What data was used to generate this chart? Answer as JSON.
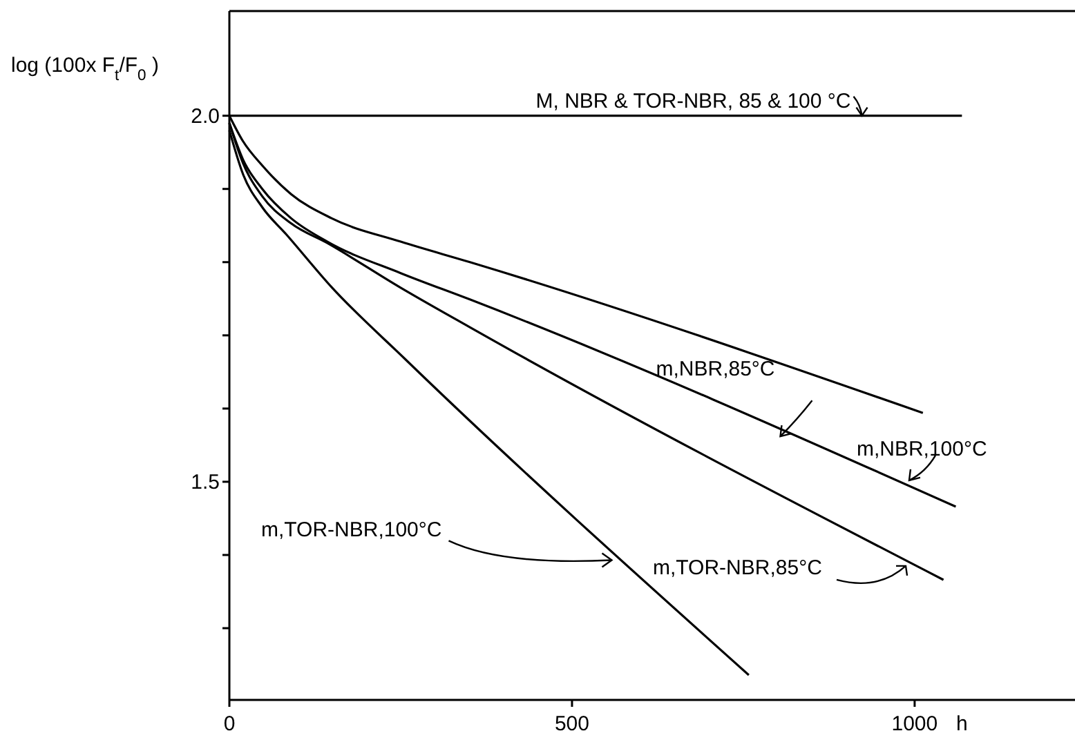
{
  "chart_data": {
    "type": "line",
    "ylabel": "log (100x F$_{t}$/F$_{0}$ )",
    "xlabel": "h",
    "xlim": [
      0,
      1234
    ],
    "ylim": [
      1.202,
      2.143
    ],
    "xticks": [
      0,
      500,
      1000
    ],
    "yticks": [
      {
        "value": 1.3,
        "label": null
      },
      {
        "value": 1.4,
        "label": null
      },
      {
        "value": 1.5,
        "label": "1.5"
      },
      {
        "value": 1.6,
        "label": null
      },
      {
        "value": 1.7,
        "label": null
      },
      {
        "value": 1.8,
        "label": null
      },
      {
        "value": 1.9,
        "label": null
      },
      {
        "value": 2.0,
        "label": "2.0"
      }
    ],
    "grid": false,
    "marker": "none",
    "line_style": "solid",
    "annotations": [
      {
        "text": "M, NBR & TOR-NBR, 85 & 100 °C",
        "x": 923,
        "y": 2.0
      },
      {
        "text": "m,NBR,85°C",
        "x": 804,
        "y": 1.562
      },
      {
        "text": "m,NBR,100°C",
        "x": 992,
        "y": 1.502
      },
      {
        "text": "m,TOR-NBR,85°C",
        "x": 987,
        "y": 1.385
      },
      {
        "text": "m,TOR-NBR,100°C",
        "x": 558,
        "y": 1.393
      }
    ],
    "series": [
      {
        "color": "#000000",
        "x": [
          0,
          1069
        ],
        "values": [
          2.0,
          2.0
        ]
      },
      {
        "color": "#000000",
        "x": [
          0,
          20,
          48,
          90,
          149,
          250,
          351,
          1012
        ],
        "values": [
          2.0,
          1.965,
          1.932,
          1.893,
          1.86,
          1.828,
          1.8,
          1.594
        ]
      },
      {
        "color": "#000000",
        "x": [
          0,
          20,
          48,
          90,
          143,
          250,
          351,
          1060
        ],
        "values": [
          1.99,
          1.94,
          1.9,
          1.86,
          1.828,
          1.785,
          1.749,
          1.466
        ]
      },
      {
        "color": "#000000",
        "x": [
          0,
          20,
          48,
          90,
          143,
          250,
          351,
          1042
        ],
        "values": [
          1.99,
          1.935,
          1.89,
          1.853,
          1.826,
          1.765,
          1.711,
          1.366
        ]
      },
      {
        "color": "#000000",
        "x": [
          0,
          20,
          48,
          83,
          150,
          256,
          758
        ],
        "values": [
          1.98,
          1.92,
          1.875,
          1.838,
          1.765,
          1.668,
          1.236
        ]
      }
    ]
  }
}
